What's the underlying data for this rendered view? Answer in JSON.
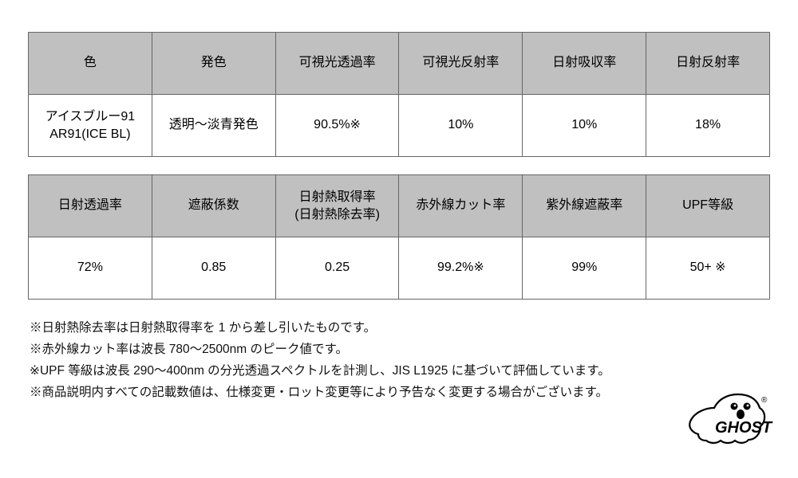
{
  "table1": {
    "headers": [
      "色",
      "発色",
      "可視光透過率",
      "可視光反射率",
      "日射吸収率",
      "日射反射率"
    ],
    "row": [
      "アイスブルー91\nAR91(ICE BL)",
      "透明～淡青発色",
      "90.5%※",
      "10%",
      "10%",
      "18%"
    ]
  },
  "table2": {
    "headers": [
      "日射透過率",
      "遮蔽係数",
      "日射熱取得率\n(日射熱除去率)",
      "赤外線カット率",
      "紫外線遮蔽率",
      "UPF等級"
    ],
    "row": [
      "72%",
      "0.85",
      "0.25",
      "99.2%※",
      "99%",
      "50+ ※"
    ]
  },
  "notes": [
    "※日射熱除去率は日射熱取得率を 1 から差し引いたものです。",
    "※赤外線カット率は波長 780～2500nm のピーク値です。",
    "※UPF 等級は波長 290～400nm の分光透過スペクトルを計測し、JIS L1925 に基づいて評価しています。",
    "※商品説明内すべての記載数値は、仕様変更・ロット変更等により予告なく変更する場合がございます。"
  ],
  "logo_text": "GHOST",
  "colors": {
    "header_bg": "#c0c0c0",
    "border": "#666666",
    "page_bg": "#ffffff",
    "text": "#111111"
  }
}
